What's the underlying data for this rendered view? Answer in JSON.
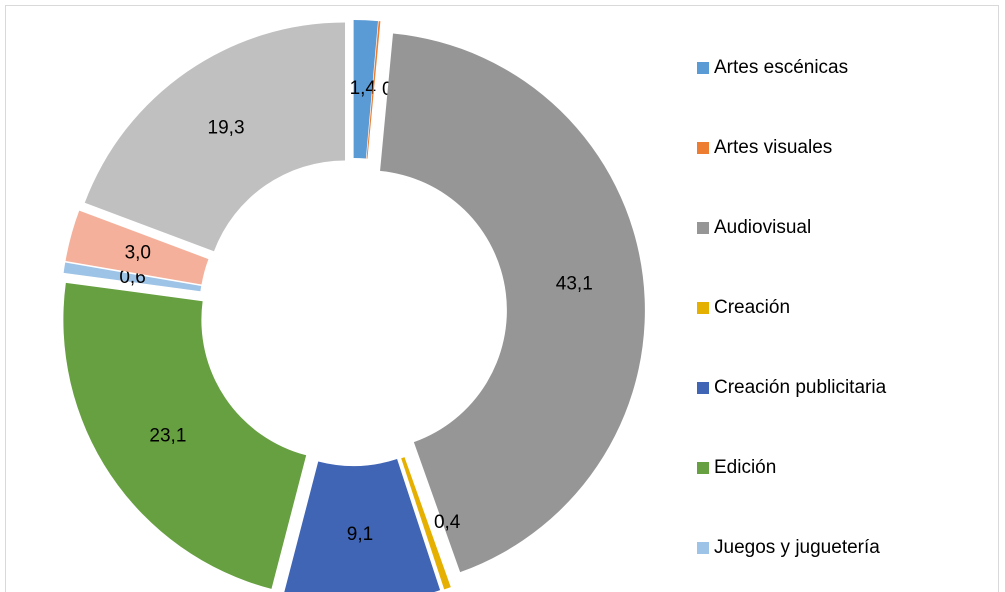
{
  "chart_data": {
    "type": "donut",
    "categories": [
      "Artes escénicas",
      "Artes visuales",
      "Audiovisual",
      "Creación",
      "Creación publicitaria",
      "Edición",
      "Juegos y juguetería",
      null,
      null
    ],
    "values": [
      1.4,
      0.1,
      43.1,
      0.4,
      9.1,
      23.1,
      0.6,
      3.0,
      19.3
    ],
    "value_labels": [
      "1,4",
      "0,1",
      "43,1",
      "0,4",
      "9,1",
      "23,1",
      "0,6",
      "3,0",
      "19,3"
    ],
    "colors": [
      "#5b9bd5",
      "#ed7d31",
      "#969696",
      "#e6b000",
      "#4065b4",
      "#66a040",
      "#9dc3e6",
      "#f4b09a",
      "#c0c0c0"
    ],
    "legend": "right"
  }
}
